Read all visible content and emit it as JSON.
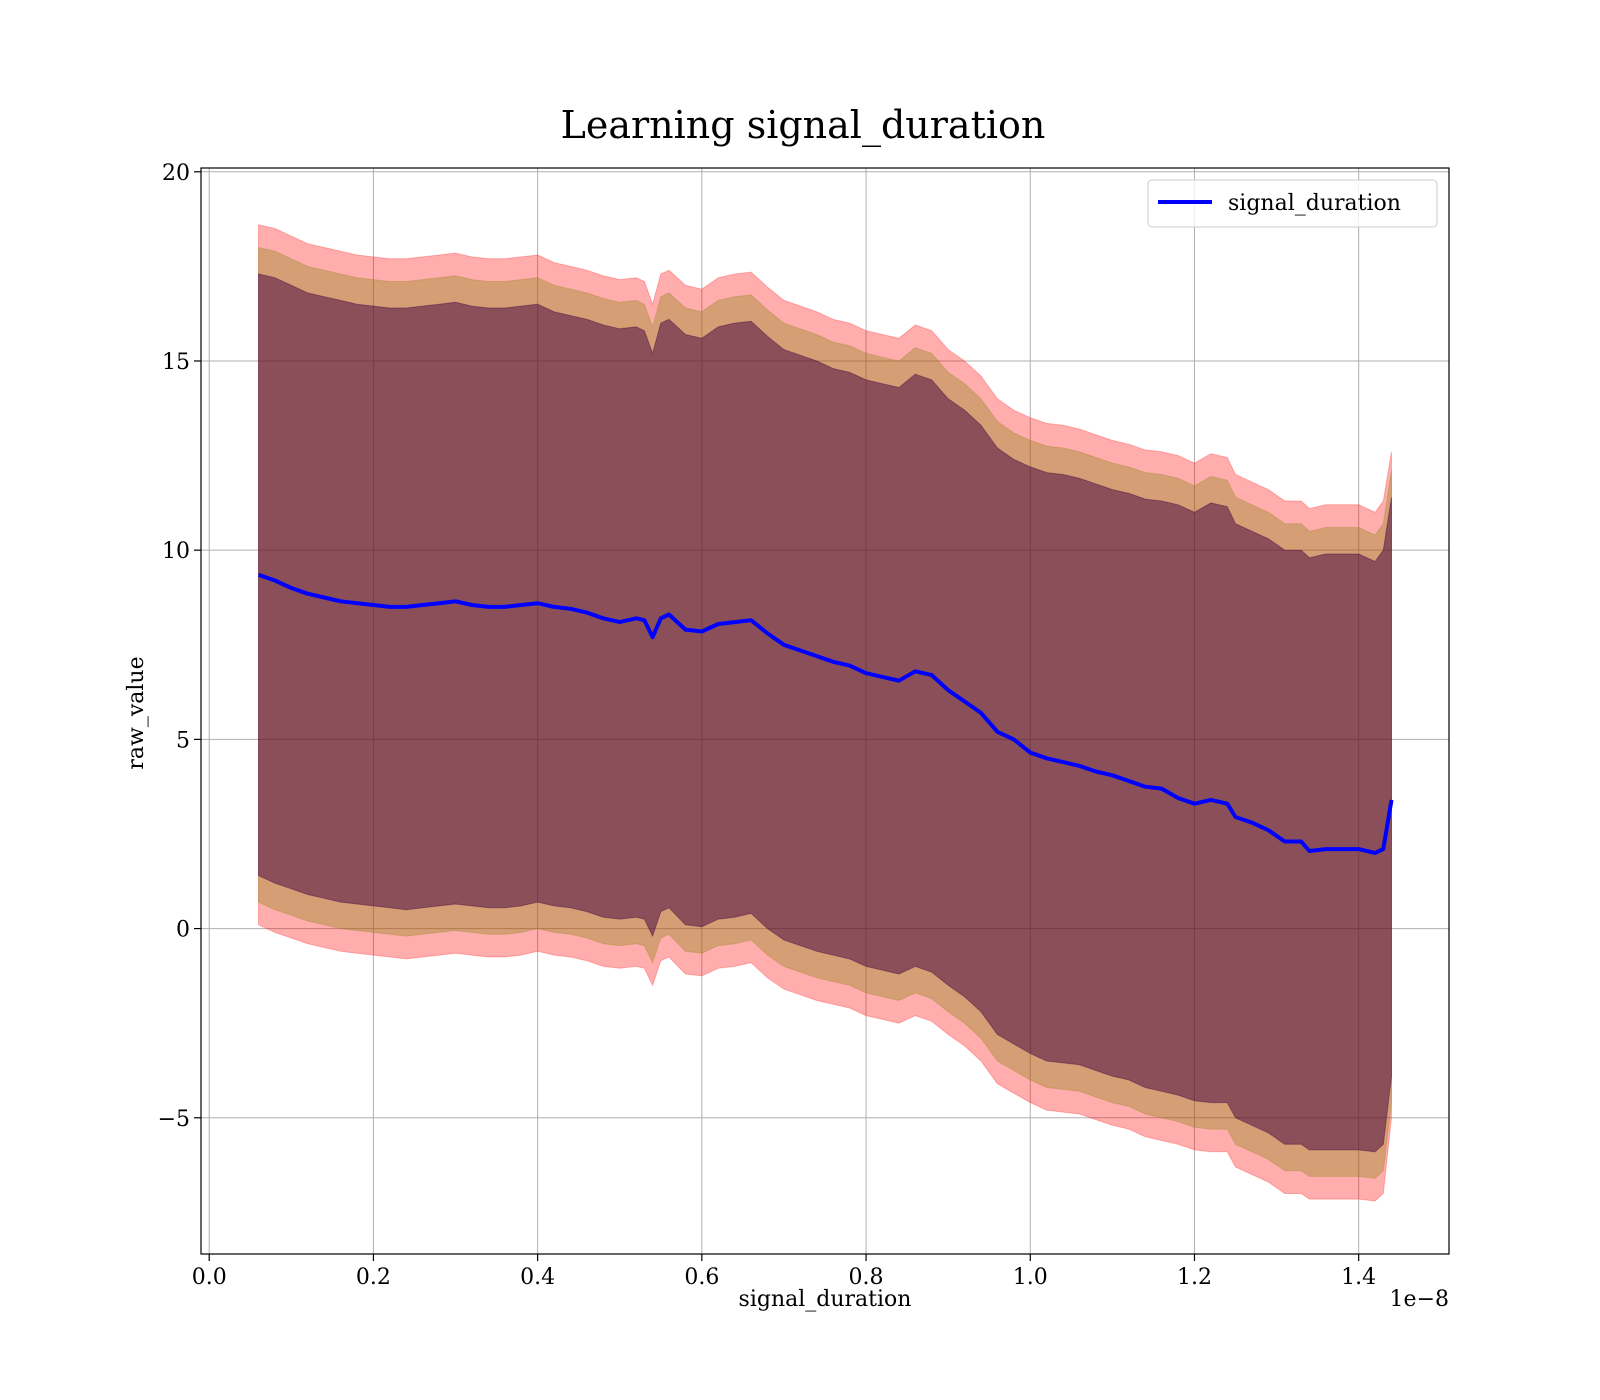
{
  "chart_data": {
    "type": "line",
    "title": "Learning signal_duration",
    "xlabel": "signal_duration",
    "ylabel": "raw_value",
    "x_offset_text": "1e−8",
    "xlim": [
      -0.01,
      1.51
    ],
    "ylim": [
      -8.6,
      20.1
    ],
    "x_ticks": [
      0.0,
      0.2,
      0.4,
      0.6,
      0.8,
      1.0,
      1.2,
      1.4
    ],
    "x_tick_labels": [
      "0.0",
      "0.2",
      "0.4",
      "0.6",
      "0.8",
      "1.0",
      "1.2",
      "1.4"
    ],
    "y_ticks": [
      -5,
      0,
      5,
      10,
      15,
      20
    ],
    "y_tick_labels": [
      "−5",
      "0",
      "5",
      "10",
      "15",
      "20"
    ],
    "grid": true,
    "legend_position": "top-right",
    "series": [
      {
        "name": "signal_duration",
        "color": "#0000ff",
        "x": [
          0.06,
          0.08,
          0.1,
          0.12,
          0.14,
          0.16,
          0.18,
          0.2,
          0.22,
          0.24,
          0.26,
          0.28,
          0.3,
          0.32,
          0.34,
          0.36,
          0.38,
          0.4,
          0.42,
          0.44,
          0.46,
          0.48,
          0.5,
          0.52,
          0.53,
          0.54,
          0.55,
          0.56,
          0.58,
          0.6,
          0.62,
          0.64,
          0.66,
          0.68,
          0.7,
          0.72,
          0.74,
          0.76,
          0.78,
          0.8,
          0.82,
          0.84,
          0.86,
          0.88,
          0.9,
          0.92,
          0.94,
          0.96,
          0.98,
          1.0,
          1.02,
          1.04,
          1.06,
          1.08,
          1.1,
          1.12,
          1.14,
          1.16,
          1.18,
          1.2,
          1.22,
          1.24,
          1.25,
          1.27,
          1.29,
          1.31,
          1.33,
          1.34,
          1.36,
          1.38,
          1.4,
          1.42,
          1.43,
          1.44
        ],
        "values": [
          9.35,
          9.2,
          9.0,
          8.85,
          8.75,
          8.65,
          8.6,
          8.55,
          8.5,
          8.5,
          8.55,
          8.6,
          8.65,
          8.55,
          8.5,
          8.5,
          8.55,
          8.6,
          8.5,
          8.45,
          8.35,
          8.2,
          8.1,
          8.2,
          8.15,
          7.7,
          8.2,
          8.3,
          7.9,
          7.85,
          8.05,
          8.1,
          8.15,
          7.8,
          7.5,
          7.35,
          7.2,
          7.05,
          6.95,
          6.75,
          6.65,
          6.55,
          6.8,
          6.7,
          6.3,
          6.0,
          5.7,
          5.2,
          5.0,
          4.65,
          4.5,
          4.4,
          4.3,
          4.15,
          4.05,
          3.9,
          3.75,
          3.7,
          3.45,
          3.3,
          3.4,
          3.3,
          2.95,
          2.8,
          2.6,
          2.3,
          2.3,
          2.05,
          2.1,
          2.1,
          2.1,
          2.0,
          2.1,
          3.4
        ]
      }
    ],
    "bands": [
      {
        "color": "#ff0000",
        "opacity": 0.32,
        "x": [
          0.06,
          0.08,
          0.1,
          0.12,
          0.14,
          0.16,
          0.18,
          0.2,
          0.22,
          0.24,
          0.26,
          0.28,
          0.3,
          0.32,
          0.34,
          0.36,
          0.38,
          0.4,
          0.42,
          0.44,
          0.46,
          0.48,
          0.5,
          0.52,
          0.53,
          0.54,
          0.55,
          0.56,
          0.58,
          0.6,
          0.62,
          0.64,
          0.66,
          0.68,
          0.7,
          0.72,
          0.74,
          0.76,
          0.78,
          0.8,
          0.82,
          0.84,
          0.86,
          0.88,
          0.9,
          0.92,
          0.94,
          0.96,
          0.98,
          1.0,
          1.02,
          1.04,
          1.06,
          1.08,
          1.1,
          1.12,
          1.14,
          1.16,
          1.18,
          1.2,
          1.22,
          1.24,
          1.25,
          1.27,
          1.29,
          1.31,
          1.33,
          1.34,
          1.36,
          1.38,
          1.4,
          1.42,
          1.43,
          1.44
        ],
        "upper": [
          18.6,
          18.5,
          18.3,
          18.1,
          18.0,
          17.9,
          17.8,
          17.75,
          17.7,
          17.7,
          17.75,
          17.8,
          17.85,
          17.75,
          17.7,
          17.7,
          17.75,
          17.8,
          17.6,
          17.5,
          17.4,
          17.25,
          17.15,
          17.2,
          17.1,
          16.5,
          17.3,
          17.4,
          17.0,
          16.9,
          17.2,
          17.3,
          17.35,
          16.95,
          16.6,
          16.45,
          16.3,
          16.1,
          16.0,
          15.8,
          15.7,
          15.6,
          15.95,
          15.8,
          15.3,
          15.0,
          14.6,
          14.0,
          13.7,
          13.5,
          13.35,
          13.3,
          13.2,
          13.05,
          12.9,
          12.8,
          12.65,
          12.6,
          12.5,
          12.3,
          12.55,
          12.45,
          12.0,
          11.8,
          11.6,
          11.3,
          11.3,
          11.1,
          11.2,
          11.2,
          11.2,
          11.0,
          11.3,
          12.6
        ],
        "lower": [
          0.1,
          -0.1,
          -0.25,
          -0.4,
          -0.5,
          -0.6,
          -0.65,
          -0.7,
          -0.75,
          -0.8,
          -0.75,
          -0.7,
          -0.65,
          -0.7,
          -0.75,
          -0.75,
          -0.7,
          -0.6,
          -0.7,
          -0.75,
          -0.85,
          -1.0,
          -1.05,
          -1.0,
          -1.05,
          -1.5,
          -0.85,
          -0.75,
          -1.2,
          -1.25,
          -1.05,
          -1.0,
          -0.9,
          -1.3,
          -1.6,
          -1.75,
          -1.9,
          -2.0,
          -2.1,
          -2.3,
          -2.4,
          -2.5,
          -2.3,
          -2.45,
          -2.8,
          -3.1,
          -3.5,
          -4.1,
          -4.35,
          -4.6,
          -4.8,
          -4.85,
          -4.9,
          -5.05,
          -5.2,
          -5.3,
          -5.5,
          -5.6,
          -5.7,
          -5.85,
          -5.9,
          -5.9,
          -6.3,
          -6.5,
          -6.7,
          -7.0,
          -7.0,
          -7.15,
          -7.15,
          -7.15,
          -7.15,
          -7.2,
          -7.0,
          -5.0
        ]
      },
      {
        "color": "#808000",
        "opacity": 0.32,
        "x": [
          0.06,
          0.08,
          0.1,
          0.12,
          0.14,
          0.16,
          0.18,
          0.2,
          0.22,
          0.24,
          0.26,
          0.28,
          0.3,
          0.32,
          0.34,
          0.36,
          0.38,
          0.4,
          0.42,
          0.44,
          0.46,
          0.48,
          0.5,
          0.52,
          0.53,
          0.54,
          0.55,
          0.56,
          0.58,
          0.6,
          0.62,
          0.64,
          0.66,
          0.68,
          0.7,
          0.72,
          0.74,
          0.76,
          0.78,
          0.8,
          0.82,
          0.84,
          0.86,
          0.88,
          0.9,
          0.92,
          0.94,
          0.96,
          0.98,
          1.0,
          1.02,
          1.04,
          1.06,
          1.08,
          1.1,
          1.12,
          1.14,
          1.16,
          1.18,
          1.2,
          1.22,
          1.24,
          1.25,
          1.27,
          1.29,
          1.31,
          1.33,
          1.34,
          1.36,
          1.38,
          1.4,
          1.42,
          1.43,
          1.44
        ],
        "upper": [
          18.0,
          17.9,
          17.7,
          17.5,
          17.4,
          17.3,
          17.2,
          17.15,
          17.1,
          17.1,
          17.15,
          17.2,
          17.25,
          17.15,
          17.1,
          17.1,
          17.15,
          17.2,
          17.0,
          16.9,
          16.8,
          16.65,
          16.55,
          16.6,
          16.5,
          15.9,
          16.7,
          16.8,
          16.4,
          16.3,
          16.6,
          16.7,
          16.75,
          16.35,
          16.0,
          15.85,
          15.7,
          15.5,
          15.4,
          15.2,
          15.1,
          15.0,
          15.35,
          15.2,
          14.7,
          14.4,
          14.0,
          13.4,
          13.1,
          12.9,
          12.75,
          12.7,
          12.6,
          12.45,
          12.3,
          12.2,
          12.05,
          12.0,
          11.9,
          11.7,
          11.95,
          11.85,
          11.4,
          11.2,
          11.0,
          10.7,
          10.7,
          10.5,
          10.6,
          10.6,
          10.6,
          10.4,
          10.7,
          12.1
        ],
        "lower": [
          0.7,
          0.5,
          0.35,
          0.2,
          0.1,
          0.0,
          -0.05,
          -0.1,
          -0.15,
          -0.2,
          -0.15,
          -0.1,
          -0.05,
          -0.1,
          -0.15,
          -0.15,
          -0.1,
          0.0,
          -0.1,
          -0.15,
          -0.25,
          -0.4,
          -0.45,
          -0.4,
          -0.45,
          -0.9,
          -0.25,
          -0.15,
          -0.6,
          -0.65,
          -0.45,
          -0.4,
          -0.3,
          -0.7,
          -1.0,
          -1.15,
          -1.3,
          -1.4,
          -1.5,
          -1.7,
          -1.8,
          -1.9,
          -1.7,
          -1.85,
          -2.2,
          -2.5,
          -2.9,
          -3.5,
          -3.75,
          -4.0,
          -4.2,
          -4.25,
          -4.3,
          -4.45,
          -4.6,
          -4.7,
          -4.9,
          -5.0,
          -5.1,
          -5.25,
          -5.3,
          -5.3,
          -5.7,
          -5.9,
          -6.1,
          -6.4,
          -6.4,
          -6.55,
          -6.55,
          -6.55,
          -6.55,
          -6.6,
          -6.4,
          -4.6
        ]
      },
      {
        "color": "#400040",
        "opacity": 0.5,
        "x": [
          0.06,
          0.08,
          0.1,
          0.12,
          0.14,
          0.16,
          0.18,
          0.2,
          0.22,
          0.24,
          0.26,
          0.28,
          0.3,
          0.32,
          0.34,
          0.36,
          0.38,
          0.4,
          0.42,
          0.44,
          0.46,
          0.48,
          0.5,
          0.52,
          0.53,
          0.54,
          0.55,
          0.56,
          0.58,
          0.6,
          0.62,
          0.64,
          0.66,
          0.68,
          0.7,
          0.72,
          0.74,
          0.76,
          0.78,
          0.8,
          0.82,
          0.84,
          0.86,
          0.88,
          0.9,
          0.92,
          0.94,
          0.96,
          0.98,
          1.0,
          1.02,
          1.04,
          1.06,
          1.08,
          1.1,
          1.12,
          1.14,
          1.16,
          1.18,
          1.2,
          1.22,
          1.24,
          1.25,
          1.27,
          1.29,
          1.31,
          1.33,
          1.34,
          1.36,
          1.38,
          1.4,
          1.42,
          1.43,
          1.44
        ],
        "upper": [
          17.3,
          17.2,
          17.0,
          16.8,
          16.7,
          16.6,
          16.5,
          16.45,
          16.4,
          16.4,
          16.45,
          16.5,
          16.55,
          16.45,
          16.4,
          16.4,
          16.45,
          16.5,
          16.3,
          16.2,
          16.1,
          15.95,
          15.85,
          15.9,
          15.8,
          15.2,
          16.0,
          16.1,
          15.7,
          15.6,
          15.9,
          16.0,
          16.05,
          15.65,
          15.3,
          15.15,
          15.0,
          14.8,
          14.7,
          14.5,
          14.4,
          14.3,
          14.65,
          14.5,
          14.0,
          13.7,
          13.3,
          12.7,
          12.4,
          12.2,
          12.05,
          12.0,
          11.9,
          11.75,
          11.6,
          11.5,
          11.35,
          11.3,
          11.2,
          11.0,
          11.25,
          11.15,
          10.7,
          10.5,
          10.3,
          10.0,
          10.0,
          9.8,
          9.9,
          9.9,
          9.9,
          9.7,
          10.0,
          11.4
        ],
        "lower": [
          1.4,
          1.2,
          1.05,
          0.9,
          0.8,
          0.7,
          0.65,
          0.6,
          0.55,
          0.5,
          0.55,
          0.6,
          0.65,
          0.6,
          0.55,
          0.55,
          0.6,
          0.7,
          0.6,
          0.55,
          0.45,
          0.3,
          0.25,
          0.3,
          0.25,
          -0.2,
          0.45,
          0.55,
          0.1,
          0.05,
          0.25,
          0.3,
          0.4,
          0.0,
          -0.3,
          -0.45,
          -0.6,
          -0.7,
          -0.8,
          -1.0,
          -1.1,
          -1.2,
          -1.0,
          -1.15,
          -1.5,
          -1.8,
          -2.2,
          -2.8,
          -3.05,
          -3.3,
          -3.5,
          -3.55,
          -3.6,
          -3.75,
          -3.9,
          -4.0,
          -4.2,
          -4.3,
          -4.4,
          -4.55,
          -4.6,
          -4.6,
          -5.0,
          -5.2,
          -5.4,
          -5.7,
          -5.7,
          -5.85,
          -5.85,
          -5.85,
          -5.85,
          -5.9,
          -5.7,
          -3.9
        ]
      }
    ]
  }
}
